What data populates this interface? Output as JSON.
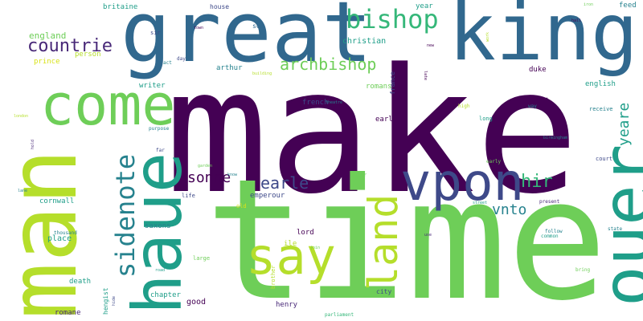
{
  "words": [
    "make",
    "time",
    "man",
    "great",
    "king",
    "haue",
    "ouer",
    "vpon",
    "come",
    "say",
    "land",
    "bishop",
    "sidenote",
    "countrie",
    "archbishop",
    "sonne",
    "earle",
    "hir",
    "vnto",
    "yeare",
    "england",
    "christian",
    "britaine",
    "year",
    "house",
    "son",
    "feed",
    "sir",
    "prince",
    "person",
    "writer",
    "duke",
    "english",
    "french",
    "romans",
    "earl",
    "arthur",
    "france",
    "receive",
    "long",
    "birmingham",
    "court",
    "purpose",
    "far",
    "cornwall",
    "emperour",
    "place",
    "saxons",
    "lord",
    "ile",
    "thousand",
    "hengist",
    "brother",
    "city",
    "death",
    "chapter",
    "good",
    "henry",
    "romane",
    "parliament",
    "state",
    "common",
    "follow",
    "present",
    "bring",
    "large",
    "life",
    "old",
    "street",
    "early",
    "order",
    "theatre",
    "know",
    "garden",
    "high",
    "way",
    "erect",
    "act",
    "day",
    "hall",
    "new",
    "late",
    "work",
    "town",
    "building",
    "london",
    "hold",
    "lane",
    "road",
    "use",
    "hide",
    "join",
    "iron"
  ],
  "palette": [
    "#440154",
    "#482878",
    "#3e4989",
    "#31688e",
    "#26828e",
    "#1f9e89",
    "#35b779",
    "#6ece58",
    "#b5de2b",
    "#d8e219"
  ]
}
